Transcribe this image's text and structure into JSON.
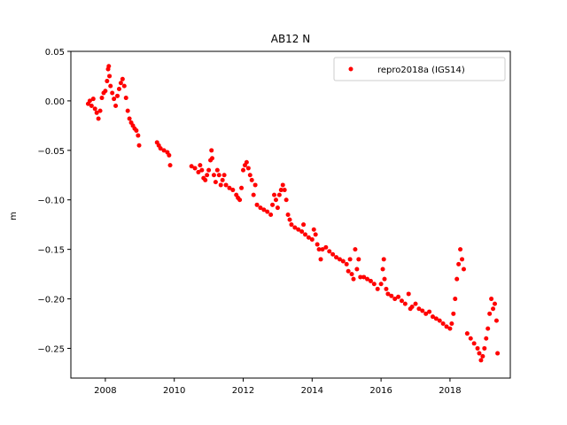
{
  "chart_data": {
    "type": "scatter",
    "title": "AB12 N",
    "xlabel": "",
    "ylabel": "m",
    "xlim": [
      2007.0,
      2019.75
    ],
    "ylim": [
      -0.28,
      0.05
    ],
    "x_ticks": [
      2008,
      2010,
      2012,
      2014,
      2016,
      2018
    ],
    "x_tick_labels": [
      "2008",
      "2010",
      "2012",
      "2014",
      "2016",
      "2018"
    ],
    "y_ticks": [
      0.05,
      0.0,
      -0.05,
      -0.1,
      -0.15,
      -0.2,
      -0.25
    ],
    "y_tick_labels": [
      "0.05",
      "0.00",
      "−0.05",
      "−0.10",
      "−0.15",
      "−0.20",
      "−0.25"
    ],
    "grid": false,
    "legend_position": "top-right",
    "series": [
      {
        "name": "repro2018a (IGS14)",
        "color": "#ff0000",
        "marker": "circle",
        "points": [
          [
            2007.5,
            -0.003
          ],
          [
            2007.55,
            0.0
          ],
          [
            2007.6,
            -0.005
          ],
          [
            2007.65,
            0.002
          ],
          [
            2007.7,
            -0.008
          ],
          [
            2007.75,
            -0.012
          ],
          [
            2007.8,
            -0.018
          ],
          [
            2007.85,
            -0.01
          ],
          [
            2007.9,
            0.003
          ],
          [
            2007.95,
            0.008
          ],
          [
            2008.0,
            0.01
          ],
          [
            2008.05,
            0.02
          ],
          [
            2008.08,
            0.032
          ],
          [
            2008.1,
            0.035
          ],
          [
            2008.12,
            0.025
          ],
          [
            2008.15,
            0.015
          ],
          [
            2008.2,
            0.008
          ],
          [
            2008.25,
            0.002
          ],
          [
            2008.3,
            -0.005
          ],
          [
            2008.35,
            0.005
          ],
          [
            2008.4,
            0.012
          ],
          [
            2008.45,
            0.018
          ],
          [
            2008.5,
            0.022
          ],
          [
            2008.55,
            0.015
          ],
          [
            2008.6,
            0.003
          ],
          [
            2008.65,
            -0.01
          ],
          [
            2008.7,
            -0.018
          ],
          [
            2008.75,
            -0.022
          ],
          [
            2008.8,
            -0.025
          ],
          [
            2008.85,
            -0.028
          ],
          [
            2008.9,
            -0.03
          ],
          [
            2008.95,
            -0.035
          ],
          [
            2008.98,
            -0.045
          ],
          [
            2009.5,
            -0.042
          ],
          [
            2009.55,
            -0.045
          ],
          [
            2009.6,
            -0.048
          ],
          [
            2009.7,
            -0.05
          ],
          [
            2009.8,
            -0.052
          ],
          [
            2009.85,
            -0.055
          ],
          [
            2009.88,
            -0.065
          ],
          [
            2010.5,
            -0.066
          ],
          [
            2010.6,
            -0.068
          ],
          [
            2010.7,
            -0.072
          ],
          [
            2010.75,
            -0.065
          ],
          [
            2010.8,
            -0.07
          ],
          [
            2010.85,
            -0.078
          ],
          [
            2010.9,
            -0.08
          ],
          [
            2010.95,
            -0.075
          ],
          [
            2011.0,
            -0.07
          ],
          [
            2011.05,
            -0.06
          ],
          [
            2011.08,
            -0.05
          ],
          [
            2011.1,
            -0.058
          ],
          [
            2011.15,
            -0.075
          ],
          [
            2011.2,
            -0.082
          ],
          [
            2011.25,
            -0.07
          ],
          [
            2011.3,
            -0.075
          ],
          [
            2011.35,
            -0.085
          ],
          [
            2011.4,
            -0.08
          ],
          [
            2011.45,
            -0.075
          ],
          [
            2011.5,
            -0.085
          ],
          [
            2011.6,
            -0.088
          ],
          [
            2011.7,
            -0.09
          ],
          [
            2011.8,
            -0.095
          ],
          [
            2011.85,
            -0.098
          ],
          [
            2011.9,
            -0.1
          ],
          [
            2011.95,
            -0.088
          ],
          [
            2012.0,
            -0.07
          ],
          [
            2012.05,
            -0.065
          ],
          [
            2012.1,
            -0.062
          ],
          [
            2012.15,
            -0.068
          ],
          [
            2012.2,
            -0.075
          ],
          [
            2012.25,
            -0.08
          ],
          [
            2012.3,
            -0.095
          ],
          [
            2012.35,
            -0.085
          ],
          [
            2012.4,
            -0.105
          ],
          [
            2012.5,
            -0.108
          ],
          [
            2012.6,
            -0.11
          ],
          [
            2012.7,
            -0.112
          ],
          [
            2012.8,
            -0.115
          ],
          [
            2012.85,
            -0.105
          ],
          [
            2012.9,
            -0.095
          ],
          [
            2012.95,
            -0.1
          ],
          [
            2013.0,
            -0.108
          ],
          [
            2013.05,
            -0.095
          ],
          [
            2013.1,
            -0.09
          ],
          [
            2013.15,
            -0.085
          ],
          [
            2013.2,
            -0.09
          ],
          [
            2013.25,
            -0.1
          ],
          [
            2013.3,
            -0.115
          ],
          [
            2013.35,
            -0.12
          ],
          [
            2013.4,
            -0.125
          ],
          [
            2013.5,
            -0.128
          ],
          [
            2013.6,
            -0.13
          ],
          [
            2013.7,
            -0.132
          ],
          [
            2013.75,
            -0.125
          ],
          [
            2013.8,
            -0.135
          ],
          [
            2013.9,
            -0.138
          ],
          [
            2014.0,
            -0.14
          ],
          [
            2014.05,
            -0.13
          ],
          [
            2014.1,
            -0.135
          ],
          [
            2014.15,
            -0.145
          ],
          [
            2014.2,
            -0.15
          ],
          [
            2014.25,
            -0.16
          ],
          [
            2014.3,
            -0.15
          ],
          [
            2014.4,
            -0.148
          ],
          [
            2014.5,
            -0.152
          ],
          [
            2014.6,
            -0.155
          ],
          [
            2014.7,
            -0.158
          ],
          [
            2014.8,
            -0.16
          ],
          [
            2014.9,
            -0.162
          ],
          [
            2015.0,
            -0.165
          ],
          [
            2015.05,
            -0.172
          ],
          [
            2015.1,
            -0.16
          ],
          [
            2015.15,
            -0.175
          ],
          [
            2015.2,
            -0.18
          ],
          [
            2015.25,
            -0.15
          ],
          [
            2015.3,
            -0.17
          ],
          [
            2015.35,
            -0.16
          ],
          [
            2015.4,
            -0.178
          ],
          [
            2015.5,
            -0.178
          ],
          [
            2015.6,
            -0.18
          ],
          [
            2015.7,
            -0.182
          ],
          [
            2015.8,
            -0.185
          ],
          [
            2015.9,
            -0.19
          ],
          [
            2016.0,
            -0.185
          ],
          [
            2016.05,
            -0.17
          ],
          [
            2016.08,
            -0.16
          ],
          [
            2016.1,
            -0.18
          ],
          [
            2016.15,
            -0.19
          ],
          [
            2016.2,
            -0.195
          ],
          [
            2016.3,
            -0.197
          ],
          [
            2016.4,
            -0.2
          ],
          [
            2016.5,
            -0.198
          ],
          [
            2016.6,
            -0.202
          ],
          [
            2016.7,
            -0.205
          ],
          [
            2016.8,
            -0.195
          ],
          [
            2016.85,
            -0.21
          ],
          [
            2016.9,
            -0.208
          ],
          [
            2017.0,
            -0.205
          ],
          [
            2017.1,
            -0.21
          ],
          [
            2017.2,
            -0.212
          ],
          [
            2017.3,
            -0.215
          ],
          [
            2017.4,
            -0.213
          ],
          [
            2017.5,
            -0.218
          ],
          [
            2017.6,
            -0.22
          ],
          [
            2017.7,
            -0.222
          ],
          [
            2017.8,
            -0.225
          ],
          [
            2017.9,
            -0.228
          ],
          [
            2018.0,
            -0.23
          ],
          [
            2018.05,
            -0.225
          ],
          [
            2018.1,
            -0.215
          ],
          [
            2018.15,
            -0.2
          ],
          [
            2018.2,
            -0.18
          ],
          [
            2018.25,
            -0.165
          ],
          [
            2018.3,
            -0.15
          ],
          [
            2018.35,
            -0.16
          ],
          [
            2018.4,
            -0.17
          ],
          [
            2018.5,
            -0.235
          ],
          [
            2018.6,
            -0.24
          ],
          [
            2018.7,
            -0.245
          ],
          [
            2018.8,
            -0.25
          ],
          [
            2018.85,
            -0.255
          ],
          [
            2018.9,
            -0.262
          ],
          [
            2018.95,
            -0.258
          ],
          [
            2019.0,
            -0.25
          ],
          [
            2019.05,
            -0.24
          ],
          [
            2019.1,
            -0.23
          ],
          [
            2019.15,
            -0.215
          ],
          [
            2019.2,
            -0.2
          ],
          [
            2019.25,
            -0.21
          ],
          [
            2019.3,
            -0.205
          ],
          [
            2019.35,
            -0.222
          ],
          [
            2019.38,
            -0.255
          ]
        ]
      }
    ]
  }
}
